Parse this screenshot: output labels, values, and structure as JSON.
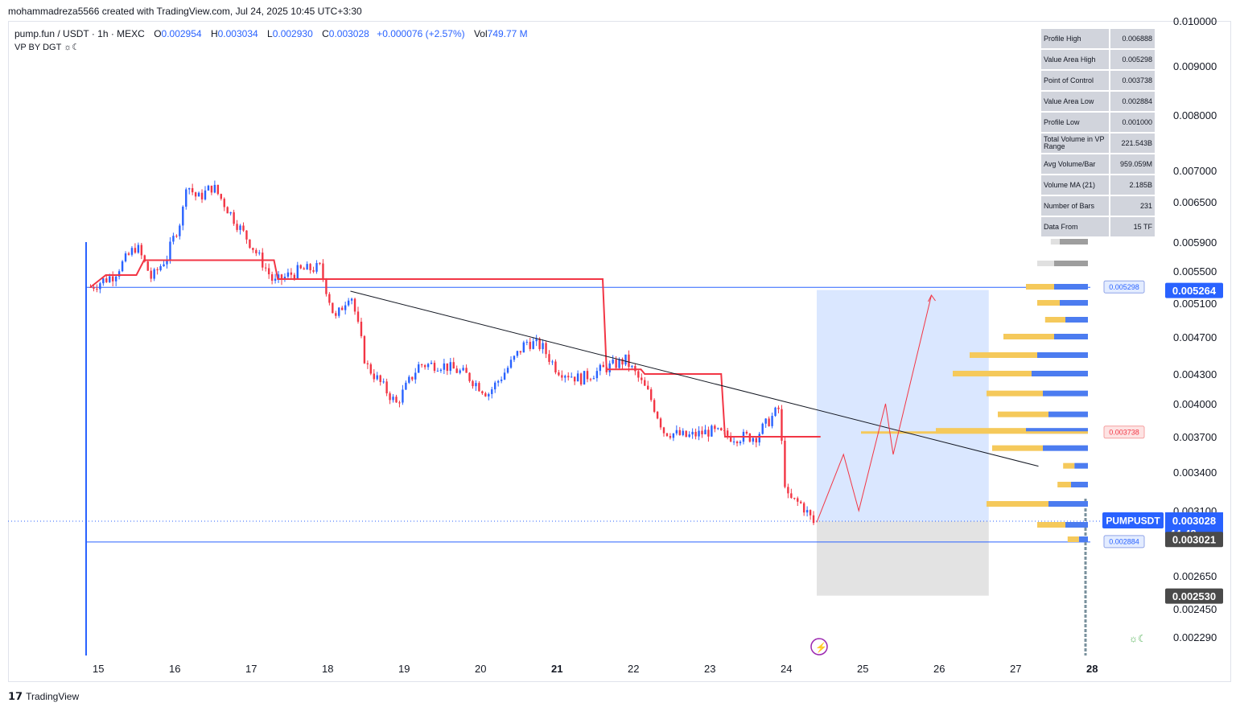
{
  "header": {
    "created_by": "mohammadreza5566 created with TradingView.com, Jul 24, 2025 10:45 UTC+3:30"
  },
  "legend": {
    "symbol": "pump.fun / USDT · 1h · MEXC",
    "open_label": "O",
    "open": "0.002954",
    "high_label": "H",
    "high": "0.003034",
    "low_label": "L",
    "low": "0.002930",
    "close_label": "C",
    "close": "0.003028",
    "change": "+0.000076 (+2.57%)",
    "vol_label": "Vol",
    "volume": "749.77 M",
    "indicator": "VP BY DGT ☼☾"
  },
  "stats_table": [
    {
      "label": "Profile High",
      "value": "0.006888"
    },
    {
      "label": "Value Area High",
      "value": "0.005298"
    },
    {
      "label": "Point of Control",
      "value": "0.003738"
    },
    {
      "label": "Value Area Low",
      "value": "0.002884"
    },
    {
      "label": "Profile Low",
      "value": "0.001000"
    },
    {
      "label": "Total Volume in VP Range",
      "value": "221.543B"
    },
    {
      "label": "Avg Volume/Bar",
      "value": "959.059M"
    },
    {
      "label": "Volume MA (21)",
      "value": "2.185B"
    },
    {
      "label": "Number of Bars",
      "value": "231"
    },
    {
      "label": "Data From",
      "value": "15 TF"
    }
  ],
  "price_badges": {
    "vah": "0.005298",
    "poc": "0.003738",
    "val": "0.002884",
    "profile_high": "0.006888",
    "current_symbol": "PUMPUSDT",
    "current_price": "0.003028",
    "countdown": "44:48",
    "level_1": "0.005264",
    "level_2": "0.003021",
    "level_3": "0.002530"
  },
  "footer": {
    "brand": "TradingView"
  },
  "colors": {
    "up": "#2962ff",
    "down": "#f23645",
    "tp_zone": "#d6e4ff",
    "sl_zone": "#e0e0e0",
    "poc_line": "#f23645",
    "vp_up": "#4c7cf0",
    "vp_down": "#f5c95b"
  },
  "chart_data": {
    "type": "candlestick",
    "symbol": "PUMPUSDT",
    "timeframe": "1h",
    "x_ticks": [
      "15",
      "16",
      "17",
      "18",
      "19",
      "20",
      "21",
      "22",
      "23",
      "24",
      "25",
      "26",
      "27",
      "28"
    ],
    "y_ticks": [
      "0.010000",
      "0.009000",
      "0.008000",
      "0.007000",
      "0.006500",
      "0.005900",
      "0.005500",
      "0.005100",
      "0.004700",
      "0.004300",
      "0.004000",
      "0.003700",
      "0.003400",
      "0.003100",
      "0.002650",
      "0.002450",
      "0.002290"
    ],
    "price_path": [
      {
        "day": 14.9,
        "price": 0.0053
      },
      {
        "day": 15.2,
        "price": 0.00545
      },
      {
        "day": 15.5,
        "price": 0.00585
      },
      {
        "day": 15.7,
        "price": 0.0054
      },
      {
        "day": 15.9,
        "price": 0.0057
      },
      {
        "day": 16.1,
        "price": 0.0063
      },
      {
        "day": 16.15,
        "price": 0.0068
      },
      {
        "day": 16.3,
        "price": 0.00655
      },
      {
        "day": 16.5,
        "price": 0.00675
      },
      {
        "day": 16.8,
        "price": 0.0062
      },
      {
        "day": 17.1,
        "price": 0.0057
      },
      {
        "day": 17.3,
        "price": 0.00535
      },
      {
        "day": 17.6,
        "price": 0.0055
      },
      {
        "day": 17.9,
        "price": 0.00555
      },
      {
        "day": 18.1,
        "price": 0.0049
      },
      {
        "day": 18.3,
        "price": 0.00525
      },
      {
        "day": 18.5,
        "price": 0.0044
      },
      {
        "day": 18.9,
        "price": 0.004
      },
      {
        "day": 19.2,
        "price": 0.0044
      },
      {
        "day": 19.5,
        "price": 0.0044
      },
      {
        "day": 19.8,
        "price": 0.0043
      },
      {
        "day": 20.1,
        "price": 0.0041
      },
      {
        "day": 20.3,
        "price": 0.0043
      },
      {
        "day": 20.6,
        "price": 0.00465
      },
      {
        "day": 20.8,
        "price": 0.0046
      },
      {
        "day": 21.0,
        "price": 0.00435
      },
      {
        "day": 21.3,
        "price": 0.00425
      },
      {
        "day": 21.6,
        "price": 0.00435
      },
      {
        "day": 21.9,
        "price": 0.00445
      },
      {
        "day": 22.2,
        "price": 0.0041
      },
      {
        "day": 22.4,
        "price": 0.00375
      },
      {
        "day": 22.7,
        "price": 0.0037
      },
      {
        "day": 23.0,
        "price": 0.00375
      },
      {
        "day": 23.3,
        "price": 0.0037
      },
      {
        "day": 23.6,
        "price": 0.0037
      },
      {
        "day": 23.9,
        "price": 0.00395
      },
      {
        "day": 24.0,
        "price": 0.0032
      },
      {
        "day": 24.2,
        "price": 0.00315
      },
      {
        "day": 24.4,
        "price": 0.00298
      }
    ],
    "poc_step_line": [
      {
        "day": 14.9,
        "price": 0.0053
      },
      {
        "day": 15.1,
        "price": 0.00545
      },
      {
        "day": 15.5,
        "price": 0.00545
      },
      {
        "day": 15.6,
        "price": 0.00565
      },
      {
        "day": 17.3,
        "price": 0.00565
      },
      {
        "day": 17.35,
        "price": 0.0054
      },
      {
        "day": 21.6,
        "price": 0.0054
      },
      {
        "day": 21.65,
        "price": 0.00435
      },
      {
        "day": 22.1,
        "price": 0.00435
      },
      {
        "day": 22.15,
        "price": 0.0043
      },
      {
        "day": 23.15,
        "price": 0.0043
      },
      {
        "day": 23.2,
        "price": 0.0037
      },
      {
        "day": 24.45,
        "price": 0.0037
      }
    ],
    "trendline": [
      {
        "day": 18.3,
        "price": 0.00525
      },
      {
        "day": 27.3,
        "price": 0.00345
      }
    ],
    "projection": [
      {
        "day": 24.4,
        "price": 0.00302
      },
      {
        "day": 24.75,
        "price": 0.00355
      },
      {
        "day": 24.95,
        "price": 0.0031
      },
      {
        "day": 25.3,
        "price": 0.004
      },
      {
        "day": 25.4,
        "price": 0.00355
      },
      {
        "day": 25.9,
        "price": 0.0052
      }
    ],
    "vah": 0.005298,
    "poc": 0.003738,
    "val": 0.002884,
    "tp_zone": {
      "from_day": 24.4,
      "to_day": 26.65,
      "low": 0.003028,
      "high": 0.005264
    },
    "sl_zone": {
      "from_day": 24.4,
      "to_day": 26.65,
      "low": 0.00253,
      "high": 0.003028
    },
    "volume_profile": [
      {
        "price": 0.0068,
        "up": 0.08,
        "down": 0.02
      },
      {
        "price": 0.0065,
        "up": 0.12,
        "down": 0.03
      },
      {
        "price": 0.0062,
        "up": 0.18,
        "down": 0.05
      },
      {
        "price": 0.0059,
        "up": 0.25,
        "down": 0.08
      },
      {
        "price": 0.0056,
        "up": 0.3,
        "down": 0.15
      },
      {
        "price": 0.0053,
        "up": 0.3,
        "down": 0.25
      },
      {
        "price": 0.0051,
        "up": 0.25,
        "down": 0.2
      },
      {
        "price": 0.0049,
        "up": 0.2,
        "down": 0.18
      },
      {
        "price": 0.0047,
        "up": 0.3,
        "down": 0.45
      },
      {
        "price": 0.0045,
        "up": 0.45,
        "down": 0.6
      },
      {
        "price": 0.0043,
        "up": 0.5,
        "down": 0.7
      },
      {
        "price": 0.0041,
        "up": 0.4,
        "down": 0.5
      },
      {
        "price": 0.0039,
        "up": 0.35,
        "down": 0.45
      },
      {
        "price": 0.00375,
        "up": 0.55,
        "down": 0.8
      },
      {
        "price": 0.0036,
        "up": 0.4,
        "down": 0.45
      },
      {
        "price": 0.00345,
        "up": 0.12,
        "down": 0.1
      },
      {
        "price": 0.0033,
        "up": 0.15,
        "down": 0.12
      },
      {
        "price": 0.00315,
        "up": 0.35,
        "down": 0.55
      },
      {
        "price": 0.003,
        "up": 0.2,
        "down": 0.25
      },
      {
        "price": 0.0029,
        "up": 0.08,
        "down": 0.1
      }
    ]
  }
}
